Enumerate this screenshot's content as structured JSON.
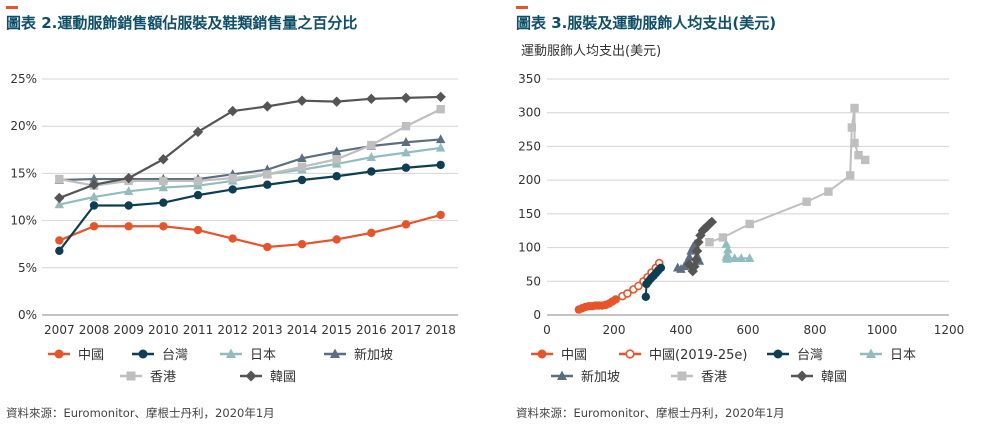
{
  "colors": {
    "accent": "#E8542A",
    "title": "#0E4F68",
    "axis_text": "#333333",
    "grid": "#D4D4D4",
    "china": "#E8542A",
    "taiwan": "#0E3E53",
    "japan": "#93BDBD",
    "singapore": "#5C6E80",
    "hongkong": "#BFBFBF",
    "korea": "#555555"
  },
  "source_note": "資料來源：Euromonitor、摩根士丹利，2020年1月",
  "chart_data": [
    {
      "type": "line",
      "title": "圖表 2.運動服飾銷售額佔服裝及鞋類銷售量之百分比",
      "xlabel": "",
      "ylabel": "",
      "categories": [
        "2007",
        "2008",
        "2009",
        "2010",
        "2011",
        "2012",
        "2013",
        "2014",
        "2015",
        "2016",
        "2017",
        "2018"
      ],
      "ylim": [
        0,
        25
      ],
      "y_ticks": [
        0,
        5,
        10,
        15,
        20,
        25
      ],
      "y_tick_labels": [
        "0%",
        "5%",
        "10%",
        "15%",
        "20%",
        "25%"
      ],
      "grid": "horizontal",
      "legend_position": "bottom",
      "series": [
        {
          "name": "中國",
          "color": "#E8542A",
          "marker": "circle",
          "values": [
            7.9,
            9.4,
            9.4,
            9.4,
            9.0,
            8.1,
            7.2,
            7.5,
            8.0,
            8.7,
            9.6,
            10.6
          ]
        },
        {
          "name": "台灣",
          "color": "#0E3E53",
          "marker": "circle",
          "values": [
            6.8,
            11.6,
            11.6,
            11.9,
            12.7,
            13.3,
            13.8,
            14.3,
            14.7,
            15.2,
            15.6,
            15.9
          ]
        },
        {
          "name": "日本",
          "color": "#93BDBD",
          "marker": "triangle",
          "values": [
            11.7,
            12.5,
            13.1,
            13.5,
            13.7,
            14.2,
            14.9,
            15.4,
            16.0,
            16.7,
            17.2,
            17.7
          ]
        },
        {
          "name": "新加坡",
          "color": "#5C6E80",
          "marker": "triangle",
          "values": [
            14.3,
            14.4,
            14.4,
            14.4,
            14.4,
            14.9,
            15.4,
            16.6,
            17.3,
            17.9,
            18.3,
            18.6
          ]
        },
        {
          "name": "香港",
          "color": "#BFBFBF",
          "marker": "square",
          "values": [
            14.4,
            13.7,
            14.2,
            14.2,
            14.2,
            14.5,
            14.9,
            15.7,
            16.5,
            18.0,
            20.0,
            21.8
          ]
        },
        {
          "name": "韓國",
          "color": "#555555",
          "marker": "diamond",
          "values": [
            12.4,
            13.8,
            14.5,
            16.5,
            19.4,
            21.6,
            22.1,
            22.7,
            22.6,
            22.9,
            23.0,
            23.1
          ]
        }
      ]
    },
    {
      "type": "scatter",
      "title": "圖表 3.服裝及運動服飾人均支出(美元)",
      "subtitle": "運動服飾人均支出(美元)",
      "xlabel": "",
      "ylabel": "",
      "xlim": [
        0,
        1200
      ],
      "ylim": [
        0,
        350
      ],
      "x_ticks": [
        0,
        200,
        400,
        600,
        800,
        1000,
        1200
      ],
      "y_ticks": [
        0,
        50,
        100,
        150,
        200,
        250,
        300,
        350
      ],
      "grid": "horizontal",
      "legend_position": "bottom",
      "series": [
        {
          "name": "中國",
          "color": "#E8542A",
          "marker": "circle",
          "connected": true,
          "points": [
            [
              95,
              8
            ],
            [
              105,
              10
            ],
            [
              115,
              12
            ],
            [
              125,
              13
            ],
            [
              135,
              13
            ],
            [
              145,
              14
            ],
            [
              155,
              14
            ],
            [
              165,
              14
            ],
            [
              175,
              15
            ],
            [
              185,
              17
            ],
            [
              195,
              20
            ],
            [
              205,
              23
            ]
          ]
        },
        {
          "name": "中國(2019-25e)",
          "color": "#E8542A",
          "marker": "circle-open",
          "connected": false,
          "points": [
            [
              225,
              28
            ],
            [
              240,
              32
            ],
            [
              258,
              38
            ],
            [
              273,
              43
            ],
            [
              288,
              50
            ],
            [
              300,
              56
            ],
            [
              312,
              63
            ],
            [
              325,
              70
            ],
            [
              335,
              77
            ]
          ]
        },
        {
          "name": "台灣",
          "color": "#0E3E53",
          "marker": "circle",
          "connected": true,
          "points": [
            [
              295,
              27
            ],
            [
              297,
              46
            ],
            [
              303,
              50
            ],
            [
              310,
              54
            ],
            [
              318,
              58
            ],
            [
              325,
              62
            ],
            [
              332,
              66
            ],
            [
              340,
              70
            ]
          ]
        },
        {
          "name": "日本",
          "color": "#93BDBD",
          "marker": "triangle",
          "connected": true,
          "points": [
            [
              535,
              105
            ],
            [
              540,
              97
            ],
            [
              538,
              90
            ],
            [
              535,
              86
            ],
            [
              537,
              83
            ],
            [
              560,
              84
            ],
            [
              580,
              84
            ],
            [
              605,
              84
            ]
          ]
        },
        {
          "name": "新加坡",
          "color": "#5C6E80",
          "marker": "triangle",
          "connected": true,
          "points": [
            [
              390,
              70
            ],
            [
              400,
              68
            ],
            [
              410,
              72
            ],
            [
              418,
              78
            ],
            [
              425,
              86
            ],
            [
              430,
              95
            ],
            [
              436,
              101
            ],
            [
              442,
              105
            ],
            [
              448,
              88
            ],
            [
              455,
              80
            ]
          ]
        },
        {
          "name": "香港",
          "color": "#BFBFBF",
          "marker": "square",
          "connected": true,
          "points": [
            [
              485,
              108
            ],
            [
              525,
              115
            ],
            [
              605,
              135
            ],
            [
              775,
              168
            ],
            [
              840,
              183
            ],
            [
              905,
              207
            ],
            [
              910,
              278
            ],
            [
              918,
              307
            ],
            [
              918,
              255
            ],
            [
              930,
              237
            ],
            [
              950,
              230
            ]
          ]
        },
        {
          "name": "韓國",
          "color": "#555555",
          "marker": "diamond",
          "connected": true,
          "points": [
            [
              425,
              75
            ],
            [
              435,
              65
            ],
            [
              440,
              72
            ],
            [
              445,
              82
            ],
            [
              448,
              95
            ],
            [
              452,
              108
            ],
            [
              458,
              118
            ],
            [
              465,
              125
            ],
            [
              470,
              128
            ],
            [
              478,
              131
            ],
            [
              485,
              135
            ],
            [
              492,
              138
            ]
          ]
        }
      ]
    }
  ]
}
